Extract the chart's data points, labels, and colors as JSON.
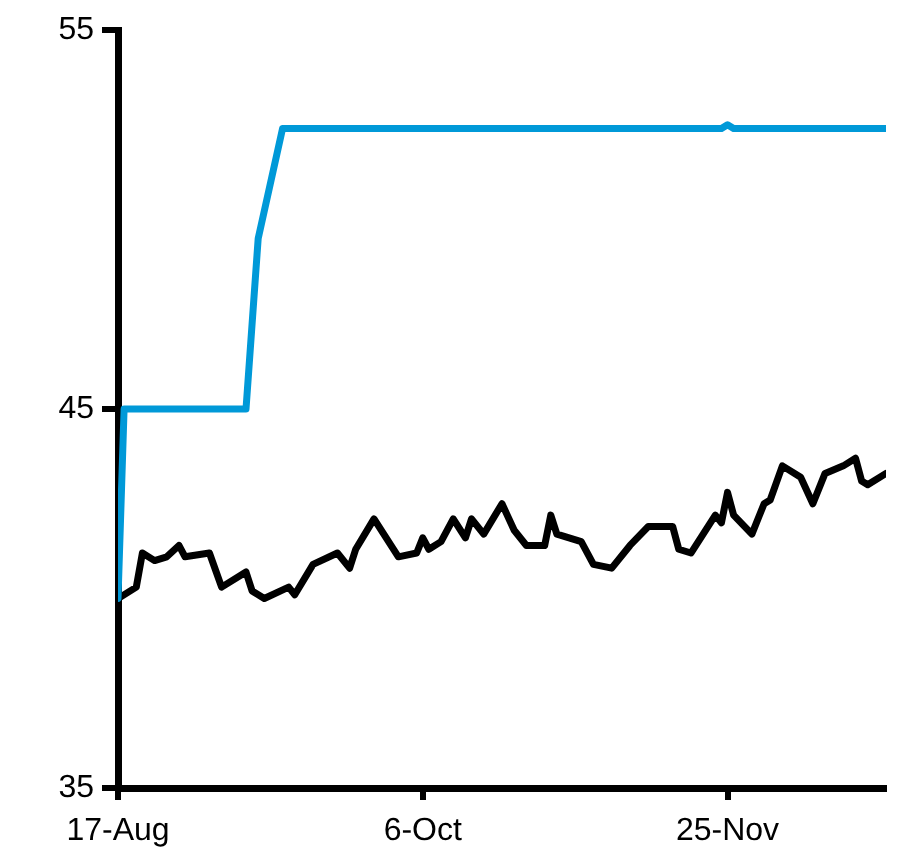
{
  "chart_data": {
    "type": "line",
    "x": [
      "--08-17",
      "--08-20",
      "--08-21",
      "--08-23",
      "--08-25",
      "--08-27",
      "--08-28",
      "--09-01",
      "--09-03",
      "--09-07",
      "--09-08",
      "--09-10",
      "--09-14",
      "--09-15",
      "--09-18",
      "--09-22",
      "--09-24",
      "--09-25",
      "--09-28",
      "--10-02",
      "--10-05",
      "--10-06",
      "--10-07",
      "--10-09",
      "--10-11",
      "--10-13",
      "--10-14",
      "--10-16",
      "--10-19",
      "--10-21",
      "--10-23",
      "--10-26",
      "--10-27",
      "--10-28",
      "--11-01",
      "--11-03",
      "--11-06",
      "--11-09",
      "--11-12",
      "--11-16",
      "--11-17",
      "--11-19",
      "--11-23",
      "--11-24",
      "--11-25",
      "--11-26",
      "--11-29",
      "--12-01",
      "--12-02",
      "--12-04",
      "--12-07",
      "--12-09",
      "--12-11",
      "--12-14",
      "--12-16",
      "--12-17",
      "--12-18",
      "--12-21"
    ],
    "series": [
      {
        "color": "#0099d8",
        "x": [
          "--08-17",
          "--08-18",
          "--09-07",
          "--09-09",
          "--09-13",
          "--11-24",
          "--11-25",
          "--11-26",
          "--12-21"
        ],
        "values": [
          40,
          45,
          45,
          49.5,
          52.4,
          52.4,
          52.5,
          52.4,
          52.4
        ]
      },
      {
        "color": "#000000",
        "values": [
          40.0,
          40.3,
          41.2,
          41.0,
          41.1,
          41.4,
          41.1,
          41.2,
          40.3,
          40.7,
          40.2,
          40.0,
          40.3,
          40.1,
          40.9,
          41.2,
          40.8,
          41.3,
          42.1,
          41.1,
          41.2,
          41.6,
          41.3,
          41.5,
          42.1,
          41.6,
          42.1,
          41.7,
          42.5,
          41.8,
          41.4,
          41.4,
          42.2,
          41.7,
          41.5,
          40.9,
          40.8,
          41.4,
          41.9,
          41.9,
          41.3,
          41.2,
          42.2,
          42.0,
          42.8,
          42.2,
          41.7,
          42.5,
          42.6,
          43.5,
          43.2,
          42.5,
          43.3,
          43.5,
          43.7,
          43.1,
          43.0,
          43.3
        ]
      }
    ],
    "xlim": [
      "--08-17",
      "--12-21"
    ],
    "xticks": [
      {
        "value": "--08-17",
        "label": "17-Aug"
      },
      {
        "value": "--10-06",
        "label": "6-Oct"
      },
      {
        "value": "--11-25",
        "label": "25-Nov"
      }
    ],
    "ylim": [
      35,
      55
    ],
    "yticks": [
      35,
      45,
      55
    ],
    "marker": "none",
    "line_style": "solid"
  }
}
